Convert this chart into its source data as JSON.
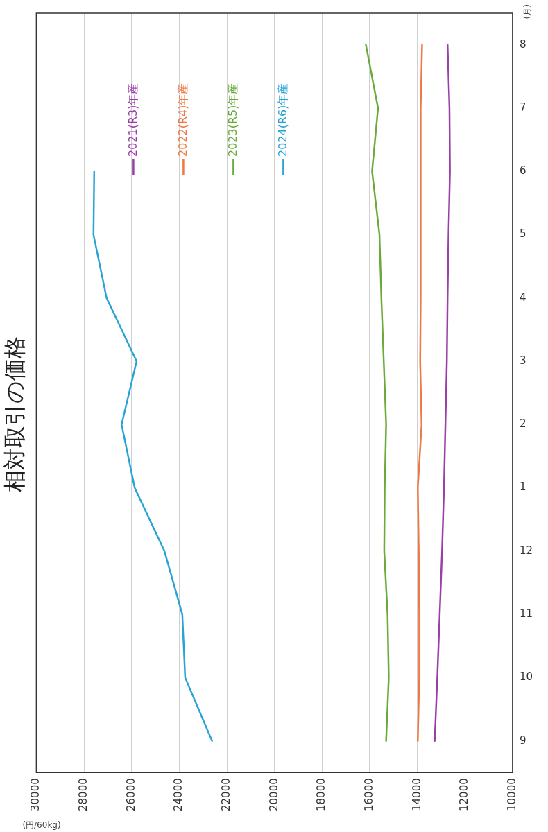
{
  "chart_data": {
    "type": "line",
    "orientation": "horizontal",
    "title": "相対取引の価格",
    "xlabel": "(円/60kg)",
    "ylabel": "(月)",
    "categories": [
      "8",
      "7",
      "6",
      "5",
      "4",
      "3",
      "2",
      "1",
      "12",
      "11",
      "10",
      "9"
    ],
    "xlim": [
      30000,
      10000
    ],
    "xticks": [
      30000,
      28000,
      26000,
      24000,
      22000,
      20000,
      18000,
      16000,
      14000,
      12000,
      10000
    ],
    "grid": "x",
    "legend": "top left",
    "marker": "none",
    "line_style": "solid",
    "series": [
      {
        "name": "2021(R3)年産",
        "color": "#9b3fa8",
        "values": [
          12730,
          12650,
          12630,
          12690,
          12730,
          12760,
          12820,
          12880,
          12960,
          13060,
          13160,
          13270
        ]
      },
      {
        "name": "2022(R4)年産",
        "color": "#f07843",
        "values": [
          13800,
          13860,
          13860,
          13860,
          13860,
          13880,
          13820,
          13980,
          13940,
          13920,
          13920,
          13980
        ]
      },
      {
        "name": "2023(R5)年産",
        "color": "#6aaa3a",
        "values": [
          16160,
          15650,
          15900,
          15590,
          15510,
          15410,
          15310,
          15370,
          15390,
          15250,
          15200,
          15310
        ]
      },
      {
        "name": "2024(R6)年産",
        "color": "#29a3d6",
        "values": [
          null,
          null,
          27570,
          27600,
          27050,
          25790,
          26420,
          25870,
          24620,
          23870,
          23750,
          22620
        ]
      }
    ]
  }
}
